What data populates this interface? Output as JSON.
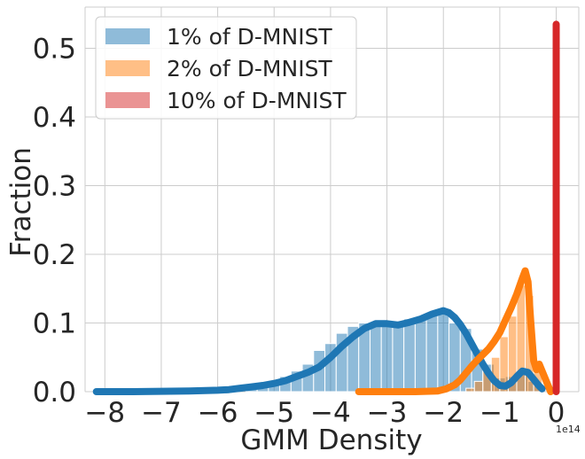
{
  "chart_data": {
    "type": "area",
    "xlabel": "GMM Density",
    "ylabel": "Fraction",
    "x_offset_label": "1e14",
    "xlim": [
      -8.35,
      0.4
    ],
    "ylim": [
      0,
      0.56
    ],
    "x_ticks": [
      -8,
      -7,
      -6,
      -5,
      -4,
      -3,
      -2,
      -1,
      0
    ],
    "x_tick_labels": [
      "−8",
      "−7",
      "−6",
      "−5",
      "−4",
      "−3",
      "−2",
      "−1",
      "0"
    ],
    "y_ticks": [
      0.0,
      0.1,
      0.2,
      0.3,
      0.4,
      0.5
    ],
    "y_tick_labels": [
      "0.0",
      "0.1",
      "0.2",
      "0.3",
      "0.4",
      "0.5"
    ],
    "grid": true,
    "legend_position": "top-left",
    "series": [
      {
        "name": "1% of D-MNIST",
        "color": "#1f77b4",
        "hist_bins": [
          [
            -5.5,
            -5.3,
            0.006
          ],
          [
            -5.3,
            -5.1,
            0.009
          ],
          [
            -5.1,
            -4.9,
            0.014
          ],
          [
            -4.9,
            -4.7,
            0.022
          ],
          [
            -4.7,
            -4.5,
            0.03
          ],
          [
            -4.5,
            -4.3,
            0.04
          ],
          [
            -4.3,
            -4.1,
            0.06
          ],
          [
            -4.1,
            -3.9,
            0.07
          ],
          [
            -3.9,
            -3.7,
            0.085
          ],
          [
            -3.7,
            -3.5,
            0.095
          ],
          [
            -3.5,
            -3.3,
            0.1
          ],
          [
            -3.3,
            -3.1,
            0.102
          ],
          [
            -3.1,
            -2.9,
            0.1
          ],
          [
            -2.9,
            -2.7,
            0.101
          ],
          [
            -2.7,
            -2.5,
            0.106
          ],
          [
            -2.5,
            -2.3,
            0.108
          ],
          [
            -2.3,
            -2.1,
            0.115
          ],
          [
            -2.1,
            -1.9,
            0.115
          ],
          [
            -1.9,
            -1.7,
            0.1
          ],
          [
            -1.7,
            -1.5,
            0.092
          ],
          [
            -1.5,
            -1.3,
            0.062
          ],
          [
            -1.3,
            -1.1,
            0.04
          ],
          [
            -1.1,
            -0.9,
            0.02
          ],
          [
            -0.9,
            -0.7,
            0.022
          ],
          [
            -0.7,
            -0.5,
            0.03
          ],
          [
            -0.5,
            -0.3,
            0.015
          ]
        ],
        "kde_x": [
          -8.15,
          -7.5,
          -7.0,
          -6.5,
          -6.0,
          -5.8,
          -5.6,
          -5.4,
          -5.2,
          -5.0,
          -4.8,
          -4.6,
          -4.4,
          -4.2,
          -4.0,
          -3.8,
          -3.6,
          -3.4,
          -3.2,
          -3.0,
          -2.8,
          -2.6,
          -2.4,
          -2.2,
          -2.0,
          -1.9,
          -1.8,
          -1.7,
          -1.6,
          -1.5,
          -1.4,
          -1.3,
          -1.2,
          -1.1,
          -1.0,
          -0.9,
          -0.8,
          -0.7,
          -0.6,
          -0.5,
          -0.4,
          -0.3,
          -0.25
        ],
        "kde_y": [
          0.0,
          0.0,
          0.0005,
          0.001,
          0.002,
          0.003,
          0.005,
          0.007,
          0.009,
          0.012,
          0.016,
          0.022,
          0.028,
          0.036,
          0.05,
          0.066,
          0.08,
          0.092,
          0.099,
          0.099,
          0.097,
          0.101,
          0.106,
          0.113,
          0.118,
          0.115,
          0.108,
          0.098,
          0.085,
          0.07,
          0.055,
          0.04,
          0.027,
          0.016,
          0.009,
          0.008,
          0.013,
          0.022,
          0.03,
          0.028,
          0.018,
          0.008,
          0.004
        ]
      },
      {
        "name": "2% of D-MNIST",
        "color": "#ff7f0e",
        "hist_bins": [
          [
            -1.6,
            -1.45,
            0.005
          ],
          [
            -1.45,
            -1.3,
            0.015
          ],
          [
            -1.3,
            -1.15,
            0.03
          ],
          [
            -1.15,
            -1.0,
            0.05
          ],
          [
            -1.0,
            -0.85,
            0.08
          ],
          [
            -0.85,
            -0.7,
            0.11
          ],
          [
            -0.7,
            -0.55,
            0.155
          ],
          [
            -0.55,
            -0.4,
            0.14
          ],
          [
            -0.4,
            -0.25,
            0.045
          ]
        ],
        "kde_x": [
          -3.5,
          -3.0,
          -2.5,
          -2.1,
          -1.95,
          -1.8,
          -1.7,
          -1.6,
          -1.5,
          -1.4,
          -1.3,
          -1.2,
          -1.1,
          -1.0,
          -0.9,
          -0.8,
          -0.7,
          -0.6,
          -0.55,
          -0.5,
          -0.45,
          -0.4,
          -0.35,
          -0.3,
          -0.2,
          -0.1
        ],
        "kde_y": [
          0.0,
          0.0,
          0.0,
          0.001,
          0.004,
          0.01,
          0.017,
          0.027,
          0.037,
          0.046,
          0.054,
          0.062,
          0.073,
          0.086,
          0.104,
          0.122,
          0.142,
          0.165,
          0.176,
          0.16,
          0.1,
          0.045,
          0.032,
          0.04,
          0.02,
          0.0
        ]
      },
      {
        "name": "10% of D-MNIST",
        "color": "#d62728",
        "hist_bins": [
          [
            -0.02,
            0.02,
            0.535
          ]
        ],
        "kde_x": [
          0.0,
          0.0
        ],
        "kde_y": [
          0.0,
          0.535
        ]
      }
    ]
  }
}
